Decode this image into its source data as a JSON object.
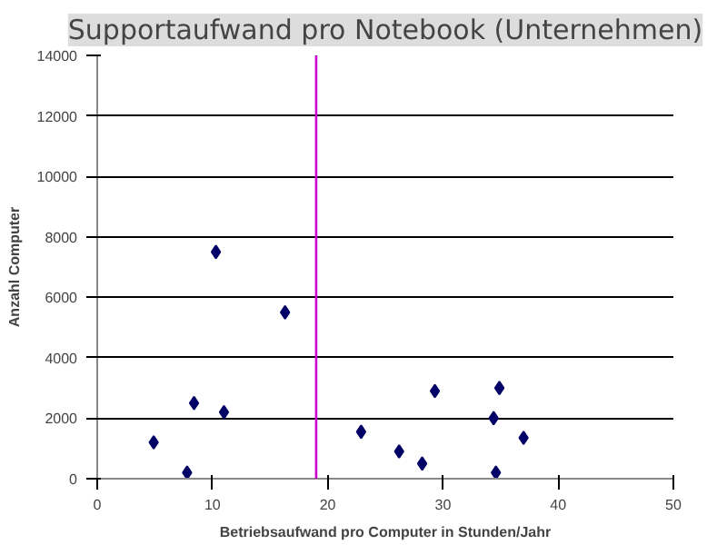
{
  "chart_data": {
    "type": "scatter",
    "title": "Supportaufwand pro Notebook (Unternehmen)",
    "xlabel": "Betriebsaufwand pro Computer in Stunden/Jahr",
    "ylabel": "Anzahl Computer",
    "x": [
      4.9,
      7.8,
      8.4,
      10.3,
      11.0,
      16.3,
      22.9,
      26.2,
      28.2,
      29.3,
      34.4,
      34.6,
      34.9,
      37.0
    ],
    "series": [
      {
        "color": "#000066",
        "values": [
          1200,
          200,
          2500,
          7500,
          2200,
          5500,
          1550,
          900,
          500,
          2900,
          2000,
          200,
          3000,
          1350
        ]
      }
    ],
    "xlim": [
      0,
      50
    ],
    "xticks": [
      0,
      10,
      20,
      30,
      40,
      50
    ],
    "ylim": [
      0,
      14000
    ],
    "yticks": [
      0,
      2000,
      4000,
      6000,
      8000,
      10000,
      12000,
      14000
    ],
    "ref_lines": [
      {
        "axis": "x",
        "value": 19,
        "color": "#cc00cc"
      }
    ],
    "grid": "y",
    "marker": "diamond"
  }
}
